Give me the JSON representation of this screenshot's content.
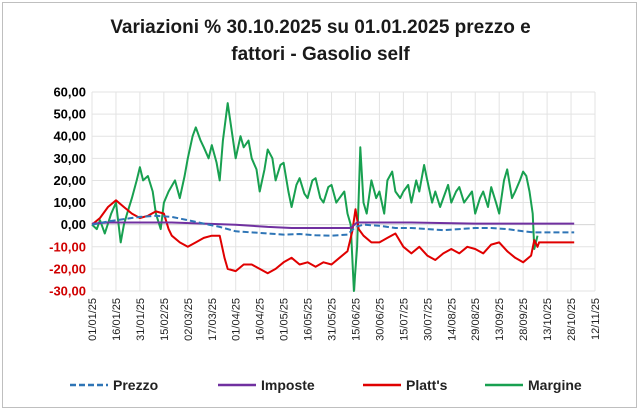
{
  "chart_data": {
    "type": "line",
    "title_line1": "Variazioni % 30.10.2025 su 01.01.2025 prezzo e",
    "title_line2": "fattori - Gasolio self",
    "xlabel": "",
    "ylabel": "",
    "ylim": [
      -30,
      60
    ],
    "y_ticks": [
      "60,00",
      "50,00",
      "40,00",
      "30,00",
      "20,00",
      "10,00",
      "0,00",
      "-10,00",
      "-20,00",
      "-30,00"
    ],
    "x_ticks": [
      "01/01/25",
      "16/01/25",
      "31/01/25",
      "15/02/25",
      "02/03/25",
      "17/03/25",
      "01/04/25",
      "16/04/25",
      "01/05/25",
      "16/05/25",
      "31/05/25",
      "15/06/25",
      "30/06/25",
      "15/07/25",
      "30/07/25",
      "14/08/25",
      "29/08/25",
      "13/09/25",
      "28/09/25",
      "13/10/25",
      "28/10/25",
      "12/11/25"
    ],
    "grid": true,
    "legend_position": "bottom",
    "colors": {
      "positive_tick": "#000000",
      "negative_tick": "#d00000"
    },
    "series": [
      {
        "name": "Prezzo",
        "color": "#2e75b6",
        "dash": true,
        "points": [
          [
            0,
            0
          ],
          [
            10,
            1.5
          ],
          [
            20,
            2.5
          ],
          [
            30,
            3.5
          ],
          [
            40,
            4
          ],
          [
            50,
            3.5
          ],
          [
            60,
            2
          ],
          [
            70,
            0.5
          ],
          [
            80,
            -1
          ],
          [
            90,
            -3
          ],
          [
            100,
            -3.5
          ],
          [
            110,
            -4
          ],
          [
            120,
            -4.5
          ],
          [
            130,
            -4.2
          ],
          [
            140,
            -4.8
          ],
          [
            150,
            -5
          ],
          [
            160,
            -4.5
          ],
          [
            165,
            -1
          ],
          [
            170,
            0
          ],
          [
            180,
            -0.5
          ],
          [
            190,
            -1.5
          ],
          [
            200,
            -1.5
          ],
          [
            210,
            -2
          ],
          [
            220,
            -2.5
          ],
          [
            230,
            -2
          ],
          [
            240,
            -1.5
          ],
          [
            250,
            -1.5
          ],
          [
            260,
            -2
          ],
          [
            270,
            -3
          ],
          [
            277,
            -3.5
          ],
          [
            302,
            -3.5
          ]
        ]
      },
      {
        "name": "Imposte",
        "color": "#7030a0",
        "dash": false,
        "points": [
          [
            0,
            0.5
          ],
          [
            10,
            1
          ],
          [
            30,
            1
          ],
          [
            50,
            1
          ],
          [
            70,
            0.5
          ],
          [
            90,
            0
          ],
          [
            110,
            -1
          ],
          [
            125,
            -1.5
          ],
          [
            150,
            -1.5
          ],
          [
            162,
            -1.5
          ],
          [
            166,
            1
          ],
          [
            200,
            1
          ],
          [
            240,
            0.5
          ],
          [
            277,
            0.5
          ],
          [
            302,
            0.5
          ]
        ]
      },
      {
        "name": "Platt's",
        "color": "#e00000",
        "dash": false,
        "points": [
          [
            0,
            0
          ],
          [
            5,
            3
          ],
          [
            10,
            8
          ],
          [
            15,
            11
          ],
          [
            20,
            8
          ],
          [
            25,
            5
          ],
          [
            30,
            3
          ],
          [
            35,
            4
          ],
          [
            40,
            6
          ],
          [
            45,
            5
          ],
          [
            48,
            -2
          ],
          [
            50,
            -5
          ],
          [
            55,
            -8
          ],
          [
            60,
            -10
          ],
          [
            65,
            -8
          ],
          [
            70,
            -6
          ],
          [
            75,
            -5
          ],
          [
            80,
            -5
          ],
          [
            83,
            -15
          ],
          [
            85,
            -20
          ],
          [
            90,
            -21
          ],
          [
            95,
            -18
          ],
          [
            100,
            -18
          ],
          [
            105,
            -20
          ],
          [
            110,
            -22
          ],
          [
            115,
            -20
          ],
          [
            120,
            -17
          ],
          [
            125,
            -15
          ],
          [
            130,
            -18
          ],
          [
            135,
            -17
          ],
          [
            140,
            -19
          ],
          [
            145,
            -17
          ],
          [
            150,
            -18
          ],
          [
            155,
            -15
          ],
          [
            160,
            -12
          ],
          [
            163,
            -3
          ],
          [
            165,
            7
          ],
          [
            167,
            -2
          ],
          [
            170,
            -5
          ],
          [
            175,
            -8
          ],
          [
            180,
            -8
          ],
          [
            185,
            -6
          ],
          [
            190,
            -4
          ],
          [
            195,
            -10
          ],
          [
            200,
            -13
          ],
          [
            205,
            -10
          ],
          [
            210,
            -14
          ],
          [
            215,
            -16
          ],
          [
            220,
            -13
          ],
          [
            225,
            -11
          ],
          [
            230,
            -13
          ],
          [
            235,
            -10
          ],
          [
            240,
            -11
          ],
          [
            245,
            -13
          ],
          [
            250,
            -9
          ],
          [
            255,
            -8
          ],
          [
            260,
            -12
          ],
          [
            265,
            -15
          ],
          [
            270,
            -17
          ],
          [
            275,
            -14
          ],
          [
            277,
            -7
          ],
          [
            279,
            -10
          ],
          [
            280,
            -8
          ],
          [
            302,
            -8
          ]
        ]
      },
      {
        "name": "Margine",
        "color": "#18a050",
        "dash": false,
        "points": [
          [
            0,
            0
          ],
          [
            3,
            -2
          ],
          [
            5,
            2
          ],
          [
            8,
            -4
          ],
          [
            12,
            5
          ],
          [
            15,
            10
          ],
          [
            18,
            -8
          ],
          [
            20,
            0
          ],
          [
            22,
            5
          ],
          [
            25,
            12
          ],
          [
            28,
            20
          ],
          [
            30,
            26
          ],
          [
            32,
            20
          ],
          [
            35,
            22
          ],
          [
            38,
            15
          ],
          [
            40,
            5
          ],
          [
            43,
            -2
          ],
          [
            45,
            10
          ],
          [
            48,
            15
          ],
          [
            52,
            20
          ],
          [
            55,
            12
          ],
          [
            58,
            22
          ],
          [
            60,
            30
          ],
          [
            63,
            40
          ],
          [
            65,
            44
          ],
          [
            68,
            38
          ],
          [
            70,
            35
          ],
          [
            73,
            30
          ],
          [
            75,
            36
          ],
          [
            78,
            28
          ],
          [
            80,
            20
          ],
          [
            82,
            38
          ],
          [
            85,
            55
          ],
          [
            87,
            45
          ],
          [
            90,
            30
          ],
          [
            93,
            40
          ],
          [
            95,
            35
          ],
          [
            98,
            38
          ],
          [
            100,
            30
          ],
          [
            103,
            25
          ],
          [
            105,
            15
          ],
          [
            108,
            25
          ],
          [
            110,
            34
          ],
          [
            113,
            30
          ],
          [
            115,
            20
          ],
          [
            118,
            27
          ],
          [
            120,
            28
          ],
          [
            123,
            15
          ],
          [
            125,
            8
          ],
          [
            128,
            18
          ],
          [
            130,
            21
          ],
          [
            133,
            14
          ],
          [
            135,
            12
          ],
          [
            138,
            20
          ],
          [
            140,
            21
          ],
          [
            143,
            12
          ],
          [
            145,
            10
          ],
          [
            148,
            17
          ],
          [
            150,
            18
          ],
          [
            153,
            10
          ],
          [
            155,
            12
          ],
          [
            158,
            15
          ],
          [
            160,
            5
          ],
          [
            162,
            0
          ],
          [
            164,
            -30
          ],
          [
            166,
            -10
          ],
          [
            168,
            35
          ],
          [
            170,
            10
          ],
          [
            172,
            5
          ],
          [
            175,
            20
          ],
          [
            178,
            12
          ],
          [
            180,
            15
          ],
          [
            183,
            5
          ],
          [
            185,
            20
          ],
          [
            188,
            24
          ],
          [
            190,
            15
          ],
          [
            193,
            12
          ],
          [
            195,
            15
          ],
          [
            198,
            18
          ],
          [
            200,
            10
          ],
          [
            203,
            20
          ],
          [
            205,
            15
          ],
          [
            208,
            27
          ],
          [
            210,
            20
          ],
          [
            213,
            10
          ],
          [
            215,
            15
          ],
          [
            218,
            8
          ],
          [
            220,
            12
          ],
          [
            223,
            18
          ],
          [
            225,
            10
          ],
          [
            228,
            15
          ],
          [
            230,
            17
          ],
          [
            233,
            10
          ],
          [
            235,
            12
          ],
          [
            238,
            15
          ],
          [
            240,
            5
          ],
          [
            243,
            12
          ],
          [
            245,
            15
          ],
          [
            248,
            8
          ],
          [
            250,
            17
          ],
          [
            253,
            10
          ],
          [
            255,
            5
          ],
          [
            258,
            20
          ],
          [
            260,
            25
          ],
          [
            263,
            12
          ],
          [
            265,
            15
          ],
          [
            268,
            20
          ],
          [
            270,
            24
          ],
          [
            272,
            22
          ],
          [
            274,
            15
          ],
          [
            276,
            5
          ],
          [
            277,
            -11
          ],
          [
            278,
            -8
          ],
          [
            279,
            -5
          ]
        ]
      }
    ]
  }
}
